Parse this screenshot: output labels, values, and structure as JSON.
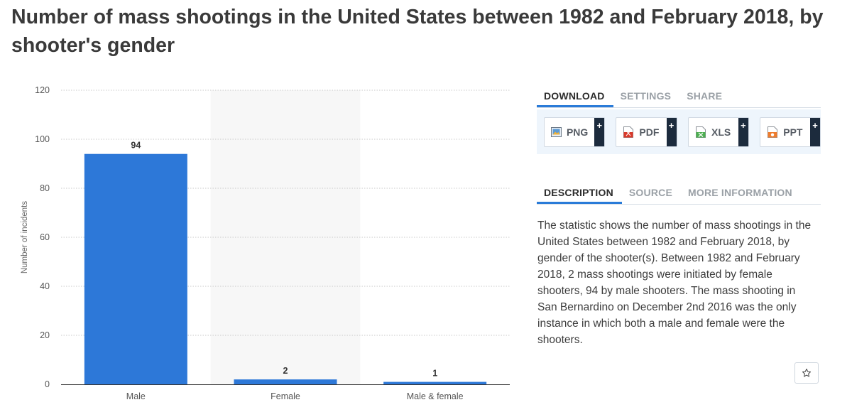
{
  "page": {
    "title": "Number of mass shootings in the United States between 1982 and February 2018, by shooter's gender"
  },
  "chart_data": {
    "type": "bar",
    "title": "",
    "xlabel": "",
    "ylabel": "Number of incidents",
    "categories": [
      "Male",
      "Female",
      "Male & female"
    ],
    "values": [
      94,
      2,
      1
    ],
    "value_labels": [
      "94",
      "2",
      "1"
    ],
    "ylim": [
      0,
      120
    ],
    "yticks": [
      0,
      20,
      40,
      60,
      80,
      100,
      120
    ],
    "grid": true,
    "highlighted_category": "Female",
    "bar_color": "#2d78d8"
  },
  "panel": {
    "download_tabs": [
      {
        "label": "DOWNLOAD",
        "active": true
      },
      {
        "label": "SETTINGS",
        "active": false
      },
      {
        "label": "SHARE",
        "active": false
      }
    ],
    "download_buttons": [
      {
        "label": "PNG",
        "icon": "png-file-icon",
        "plus": "+"
      },
      {
        "label": "PDF",
        "icon": "pdf-file-icon",
        "plus": "+"
      },
      {
        "label": "XLS",
        "icon": "xls-file-icon",
        "plus": "+"
      },
      {
        "label": "PPT",
        "icon": "ppt-file-icon",
        "plus": "+"
      }
    ],
    "info_tabs": [
      {
        "label": "DESCRIPTION",
        "active": true
      },
      {
        "label": "SOURCE",
        "active": false
      },
      {
        "label": "MORE INFORMATION",
        "active": false
      }
    ],
    "description": "The statistic shows the number of mass shootings in the United States between 1982 and February 2018, by gender of the shooter(s). Between 1982 and February 2018, 2 mass shootings were initiated by female shooters, 94 by male shooters. The mass shooting in San Bernardino on December 2nd 2016 was the only instance in which both a male and female were the shooters.",
    "star_icon": "star-icon"
  },
  "colors": {
    "accent": "#2a7bd8",
    "bar": "#2d78d8",
    "plus_bg": "#1c2b3d"
  }
}
